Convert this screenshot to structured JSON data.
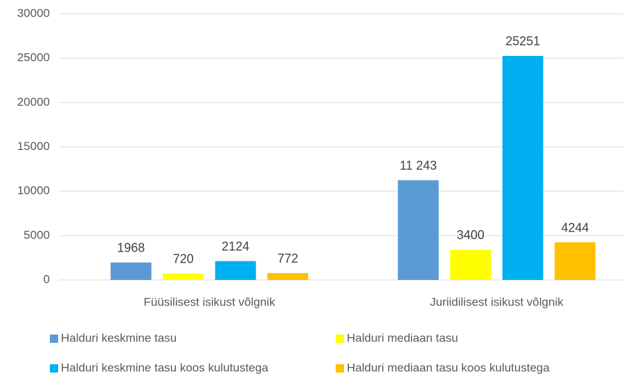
{
  "chart_data": {
    "type": "bar",
    "categories": [
      "Füüsilisest isikust võlgnik",
      "Juriidilisest isikust võlgnik"
    ],
    "series": [
      {
        "name": "Halduri keskmine tasu",
        "color": "#5b9bd5",
        "values": [
          1968,
          11243
        ],
        "value_labels": [
          "1968",
          "11 243"
        ]
      },
      {
        "name": "Halduri mediaan tasu",
        "color": "#ffff00",
        "values": [
          720,
          3400
        ]
      },
      {
        "name": "Halduri keskmine tasu koos kulutustega",
        "color": "#00b0f0",
        "values": [
          2124,
          25251
        ]
      },
      {
        "name": "Halduri mediaan tasu koos kulutustega",
        "color": "#ffc000",
        "values": [
          772,
          4244
        ]
      }
    ],
    "ylim": [
      0,
      30000
    ],
    "yticks": [
      0,
      5000,
      10000,
      15000,
      20000,
      25000,
      30000
    ],
    "grid": true,
    "legend": "bottom"
  }
}
